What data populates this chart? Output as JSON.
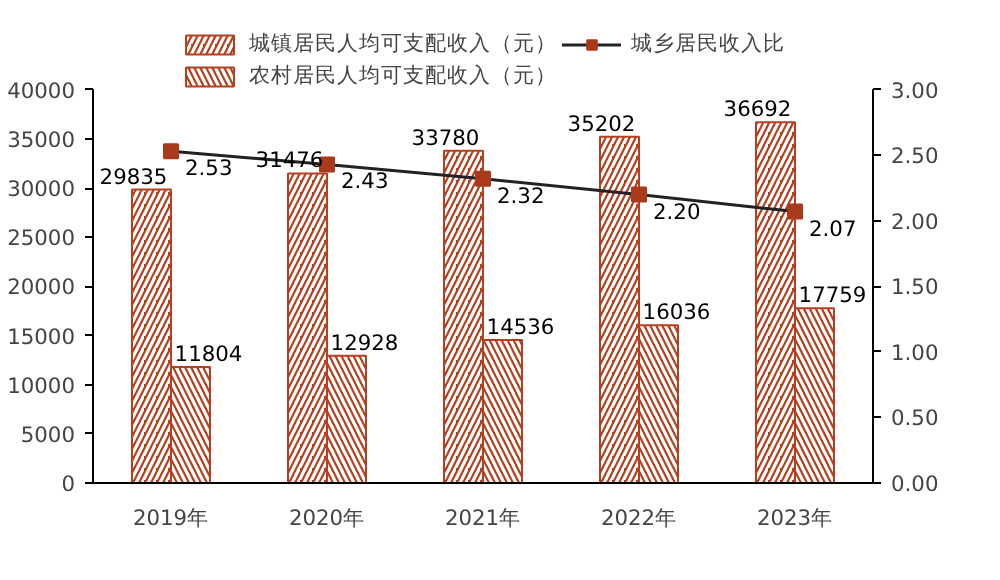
{
  "chart_data": {
    "type": "bar",
    "categories": [
      "2019年",
      "2020年",
      "2021年",
      "2022年",
      "2023年"
    ],
    "series": [
      {
        "name": "城镇居民人均可支配收入（元）",
        "color": "#b5401f",
        "values": [
          29835,
          31476,
          33780,
          35202,
          36692
        ]
      },
      {
        "name": "农村居民人均可支配收入（元）",
        "color": "#b5401f",
        "values": [
          11804,
          12928,
          14536,
          16036,
          17759
        ]
      },
      {
        "name": "城乡居民收入比",
        "type": "line",
        "axis": "y2",
        "color": "#a93a1c",
        "values": [
          2.53,
          2.43,
          2.32,
          2.2,
          2.07
        ],
        "value_labels": [
          "2.53",
          "2.43",
          "2.32",
          "2.20",
          "2.07"
        ]
      }
    ],
    "ylim": [
      0,
      40000
    ],
    "yticks": [
      0,
      5000,
      10000,
      15000,
      20000,
      25000,
      30000,
      35000,
      40000
    ],
    "y2lim": [
      0,
      3
    ],
    "y2ticks": [
      {
        "value": 0,
        "label": "0.00"
      },
      {
        "value": 0.5,
        "label": "0.50"
      },
      {
        "value": 1,
        "label": "1.00"
      },
      {
        "value": 1.5,
        "label": "1.50"
      },
      {
        "value": 2,
        "label": "2.00"
      },
      {
        "value": 2.5,
        "label": "2.50"
      },
      {
        "value": 3,
        "label": "3.00"
      }
    ],
    "data_labels": true,
    "grid": false,
    "legend": "top",
    "marker": "square",
    "line_style": "solid"
  }
}
